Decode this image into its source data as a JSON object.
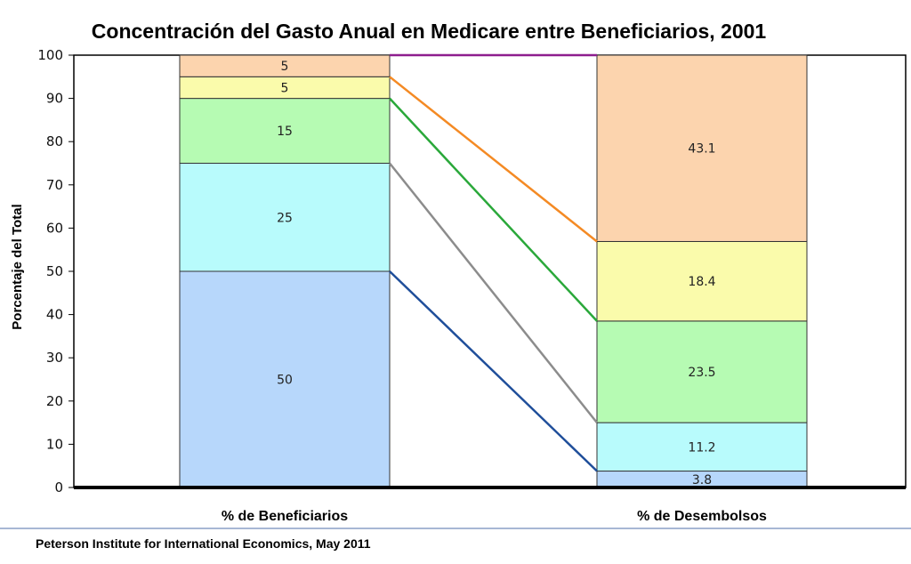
{
  "chart_data": {
    "type": "bar",
    "stacked": true,
    "title": "Concentración del Gasto Anual en Medicare entre Beneficiarios, 2001",
    "ylabel": "Porcentaje del Total",
    "ylim": [
      0,
      100
    ],
    "yticks": [
      0,
      10,
      20,
      30,
      40,
      50,
      60,
      70,
      80,
      90,
      100
    ],
    "grid": false,
    "categories": [
      "% de Beneficiarios",
      "% de Desembolsos"
    ],
    "series": [
      {
        "values": [
          50,
          3.8
        ],
        "color": "#b7d7fb",
        "line_color": "#1f4e9a"
      },
      {
        "values": [
          25,
          11.2
        ],
        "color": "#b8fbfc",
        "line_color": "#8c8c8c"
      },
      {
        "values": [
          15,
          23.5
        ],
        "color": "#b6fbb3",
        "line_color": "#2aa83a"
      },
      {
        "values": [
          5,
          18.4
        ],
        "color": "#fafbab",
        "line_color": "#f48a24"
      },
      {
        "values": [
          5,
          43.1
        ],
        "color": "#fcd4ae",
        "line_color": "#8e1d8e"
      }
    ]
  },
  "footer": {
    "source": "Peterson Institute for International Economics,  May 2011"
  }
}
